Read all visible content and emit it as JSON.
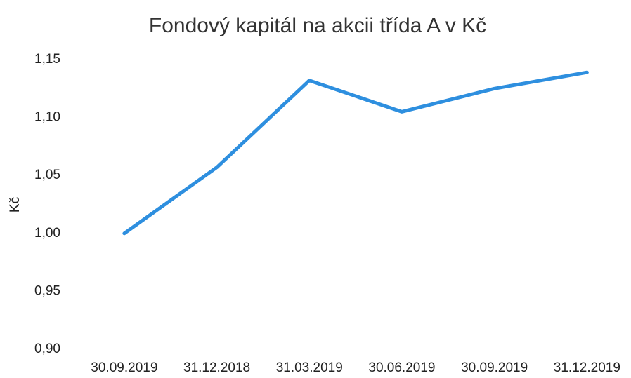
{
  "chart_data": {
    "type": "line",
    "title": "Fondový kapitál na akcii třída A v Kč",
    "y_label": "Kč",
    "categories": [
      "30.09.2019",
      "31.12.2018",
      "31.03.2019",
      "30.06.2019",
      "30.09.2019",
      "31.12.2019"
    ],
    "series": [
      {
        "name": "Fondový kapitál na akcii",
        "color": "#2e8fdf",
        "values": [
          1.0,
          1.057,
          1.132,
          1.105,
          1.125,
          1.139
        ]
      }
    ],
    "ylim": [
      0.9,
      1.15
    ],
    "yticks": [
      {
        "value": 0.9,
        "label": "0,90"
      },
      {
        "value": 0.95,
        "label": "0,95"
      },
      {
        "value": 1.0,
        "label": "1,00"
      },
      {
        "value": 1.05,
        "label": "1,05"
      },
      {
        "value": 1.1,
        "label": "1,10"
      },
      {
        "value": 1.15,
        "label": "1,15"
      }
    ],
    "grid": false
  }
}
